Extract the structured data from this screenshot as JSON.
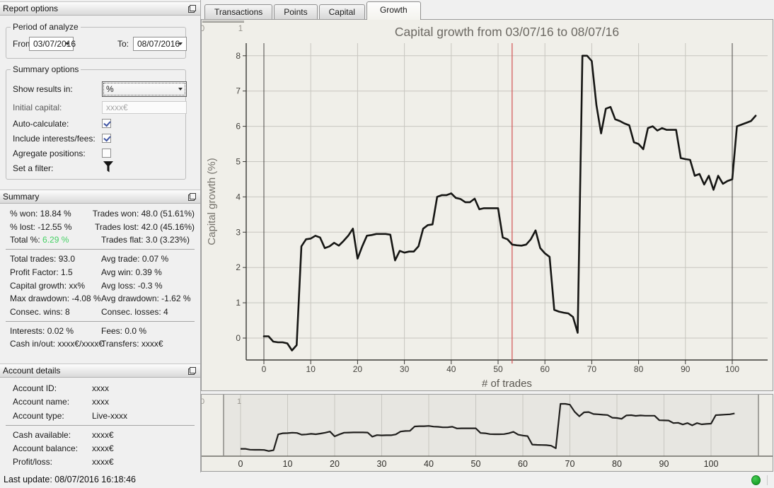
{
  "sidebar": {
    "report_options": {
      "title": "Report options",
      "period_group": {
        "legend": "Period of analyze",
        "from_label": "From:",
        "from_value": "03/07/2016",
        "to_label": "To:",
        "to_value": "08/07/2016"
      },
      "summary_options_group": {
        "legend": "Summary options",
        "show_results_label": "Show results in:",
        "show_results_value": "%",
        "initial_capital_label": "Initial capital:",
        "initial_capital_value": "xxxx€",
        "auto_calculate_label": "Auto-calculate:",
        "auto_calculate_checked": true,
        "include_interests_label": "Include interests/fees:",
        "include_interests_checked": true,
        "aggregate_positions_label": "Agregate positions:",
        "aggregate_positions_checked": false,
        "set_filter_label": "Set a filter:"
      }
    },
    "summary_panel": {
      "title": "Summary",
      "groups": [
        {
          "left": [
            "% won: 18.84 %",
            "% lost: -12.55 %",
            {
              "label": "Total %: ",
              "value": "6.29 %",
              "highlight": true
            }
          ],
          "right": [
            "Trades won: 48.0 (51.61%)",
            "Trades lost: 42.0 (45.16%)",
            "Trades flat: 3.0 (3.23%)"
          ]
        },
        {
          "left": [
            "Total trades: 93.0",
            "Profit Factor: 1.5",
            "Capital growth: xx%",
            "Max drawdown: -4.08 %",
            "Consec. wins: 8"
          ],
          "right": [
            "Avg trade: 0.07 %",
            "Avg win: 0.39 %",
            "Avg loss: -0.3 %",
            "Avg drawdown: -1.62 %",
            "Consec. losses: 4"
          ]
        },
        {
          "left": [
            "Interests: 0.02 %",
            "Cash in/out: xxxx€/xxxx€"
          ],
          "right": [
            "Fees: 0.0 %",
            "Transfers: xxxx€"
          ]
        }
      ],
      "highlight_color": "#44d164"
    },
    "account_panel": {
      "title": "Account details",
      "groups": [
        [
          {
            "label": "Account ID:",
            "value": "xxxx"
          },
          {
            "label": "Account name:",
            "value": "xxxx"
          },
          {
            "label": "Account type:",
            "value": "Live-xxxx"
          }
        ],
        [
          {
            "label": "Cash available:",
            "value": "xxxx€"
          },
          {
            "label": "Account balance:",
            "value": "xxxx€"
          },
          {
            "label": "Profit/loss:",
            "value": "xxxx€"
          }
        ]
      ]
    }
  },
  "tabs": {
    "items": [
      "Transactions",
      "Points",
      "Capital",
      "Growth"
    ],
    "active": "Growth"
  },
  "status_bar": {
    "last_update": "Last update: 08/07/2016 16:18:46",
    "connection_color": "#1ca32b"
  },
  "chart_data": {
    "type": "line",
    "title": "Capital growth from 03/07/16 to 08/07/16",
    "xlabel": "# of trades",
    "ylabel": "Capital growth (%)",
    "x_ticks": [
      0,
      10,
      20,
      30,
      40,
      50,
      60,
      70,
      80,
      90,
      100
    ],
    "y_ticks": [
      0,
      1,
      2,
      3,
      4,
      5,
      6,
      7,
      8
    ],
    "xlim": [
      -3.8,
      107.8
    ],
    "ylim": [
      -0.62,
      8.35
    ],
    "grid": true,
    "legend": "none",
    "marker_x": 53,
    "top_axis_labels": [
      "0",
      "1"
    ],
    "overview_top_label": "1",
    "x_start": 0,
    "values": [
      0.05,
      0.05,
      -0.1,
      -0.12,
      -0.12,
      -0.15,
      -0.35,
      -0.2,
      2.6,
      2.8,
      2.82,
      2.9,
      2.85,
      2.55,
      2.6,
      2.7,
      2.62,
      2.75,
      2.9,
      3.1,
      2.25,
      2.6,
      2.9,
      2.92,
      2.95,
      2.95,
      2.95,
      2.93,
      2.2,
      2.47,
      2.42,
      2.45,
      2.45,
      2.6,
      3.1,
      3.2,
      3.22,
      4.0,
      4.05,
      4.05,
      4.1,
      3.97,
      3.94,
      3.85,
      3.85,
      3.95,
      3.65,
      3.68,
      3.68,
      3.68,
      3.68,
      2.85,
      2.8,
      2.65,
      2.63,
      2.62,
      2.65,
      2.8,
      3.05,
      2.55,
      2.4,
      2.3,
      0.8,
      0.75,
      0.72,
      0.7,
      0.6,
      0.15,
      8.0,
      8.0,
      7.85,
      6.6,
      5.8,
      6.5,
      6.55,
      6.2,
      6.15,
      6.08,
      6.03,
      5.55,
      5.5,
      5.35,
      5.95,
      6.0,
      5.88,
      5.95,
      5.9,
      5.9,
      5.9,
      5.1,
      5.07,
      5.05,
      4.6,
      4.65,
      4.35,
      4.6,
      4.2,
      4.6,
      4.37,
      4.45,
      4.5,
      6.0,
      6.05,
      6.1,
      6.15,
      6.3
    ],
    "colors": {
      "line": "#161614",
      "grid": "#c7c6c0",
      "dark_grid": "#4b4a46",
      "axis": "#3b3a36",
      "marker": "#d25252",
      "bg": "#f0efe9",
      "overview_bg": "#efeee8",
      "overview_selected_bg": "#e7e6e1",
      "title": "#6b6862",
      "tick": "#45433e",
      "faint_label": "#98958e",
      "handle": "#8b8a85"
    }
  }
}
